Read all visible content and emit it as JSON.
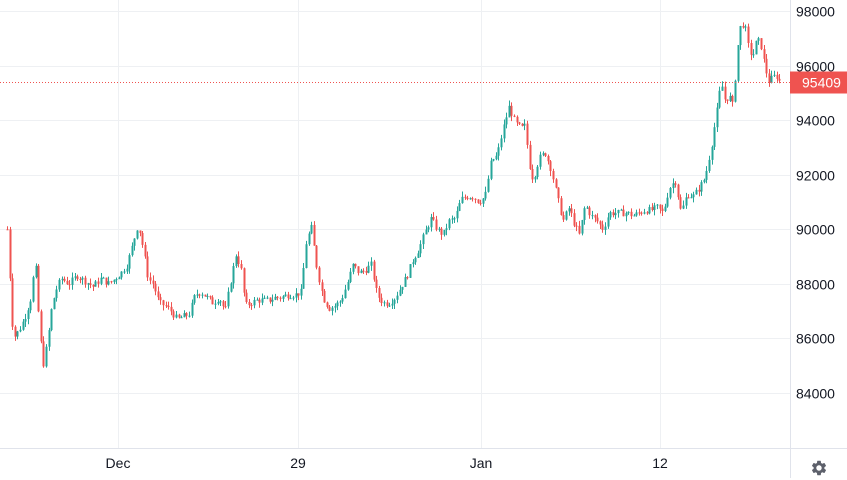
{
  "chart_data": {
    "type": "candlestick",
    "y_axis": {
      "ticks": [
        "98000",
        "96000",
        "94000",
        "92000",
        "90000",
        "88000",
        "86000",
        "84000"
      ],
      "range": [
        82000,
        98500
      ],
      "position": "right"
    },
    "x_axis": {
      "ticks": [
        "Dec",
        "29",
        "Jan",
        "12"
      ]
    },
    "last_price": 95409,
    "last_price_label": "95409",
    "colors": {
      "up": "#26a69a",
      "down": "#ef5350",
      "grid": "#eef0f3",
      "text": "#131722",
      "axis_border": "#e0e3eb",
      "price_line": "#ef5350"
    },
    "grid": true,
    "price_path": [
      [
        0,
        90000
      ],
      [
        6,
        86000
      ],
      [
        12,
        86300
      ],
      [
        18,
        86800
      ],
      [
        24,
        87500
      ],
      [
        28,
        88900
      ],
      [
        32,
        86500
      ],
      [
        36,
        85000
      ],
      [
        40,
        85800
      ],
      [
        44,
        87000
      ],
      [
        48,
        87700
      ],
      [
        54,
        88200
      ],
      [
        62,
        88000
      ],
      [
        70,
        88300
      ],
      [
        78,
        88100
      ],
      [
        86,
        87900
      ],
      [
        94,
        88200
      ],
      [
        102,
        88000
      ],
      [
        108,
        88200
      ],
      [
        114,
        88400
      ],
      [
        120,
        88700
      ],
      [
        126,
        89500
      ],
      [
        131,
        90200
      ],
      [
        136,
        89300
      ],
      [
        141,
        88200
      ],
      [
        146,
        88000
      ],
      [
        152,
        87300
      ],
      [
        158,
        87200
      ],
      [
        164,
        87000
      ],
      [
        170,
        86700
      ],
      [
        176,
        86800
      ],
      [
        182,
        86900
      ],
      [
        188,
        87600
      ],
      [
        194,
        87700
      ],
      [
        200,
        87500
      ],
      [
        206,
        87300
      ],
      [
        212,
        87500
      ],
      [
        218,
        87000
      ],
      [
        224,
        88200
      ],
      [
        229,
        89100
      ],
      [
        234,
        88500
      ],
      [
        238,
        87200
      ],
      [
        244,
        87300
      ],
      [
        250,
        87400
      ],
      [
        256,
        87400
      ],
      [
        262,
        87400
      ],
      [
        268,
        87500
      ],
      [
        274,
        87500
      ],
      [
        280,
        87600
      ],
      [
        288,
        87600
      ],
      [
        294,
        87700
      ],
      [
        299,
        89500
      ],
      [
        304,
        90100
      ],
      [
        310,
        88500
      ],
      [
        316,
        87500
      ],
      [
        322,
        87100
      ],
      [
        328,
        87200
      ],
      [
        334,
        87400
      ],
      [
        340,
        88000
      ],
      [
        346,
        88700
      ],
      [
        352,
        88400
      ],
      [
        358,
        88500
      ],
      [
        364,
        88700
      ],
      [
        370,
        87600
      ],
      [
        376,
        87300
      ],
      [
        382,
        87300
      ],
      [
        388,
        87500
      ],
      [
        394,
        87900
      ],
      [
        400,
        88300
      ],
      [
        406,
        88900
      ],
      [
        412,
        89300
      ],
      [
        418,
        89900
      ],
      [
        424,
        90400
      ],
      [
        430,
        90000
      ],
      [
        436,
        89800
      ],
      [
        442,
        90300
      ],
      [
        448,
        90400
      ],
      [
        454,
        91100
      ],
      [
        460,
        91200
      ],
      [
        466,
        91200
      ],
      [
        472,
        91000
      ],
      [
        478,
        91200
      ],
      [
        484,
        92500
      ],
      [
        490,
        92700
      ],
      [
        496,
        93700
      ],
      [
        502,
        94500
      ],
      [
        508,
        93900
      ],
      [
        514,
        93700
      ],
      [
        518,
        93800
      ],
      [
        522,
        92400
      ],
      [
        526,
        91800
      ],
      [
        532,
        92600
      ],
      [
        538,
        92800
      ],
      [
        544,
        92200
      ],
      [
        550,
        91200
      ],
      [
        556,
        90300
      ],
      [
        562,
        90800
      ],
      [
        566,
        90300
      ],
      [
        572,
        89800
      ],
      [
        578,
        90900
      ],
      [
        584,
        90500
      ],
      [
        590,
        90300
      ],
      [
        596,
        90000
      ],
      [
        602,
        90600
      ],
      [
        608,
        90600
      ],
      [
        614,
        90600
      ],
      [
        620,
        90600
      ],
      [
        626,
        90500
      ],
      [
        632,
        90600
      ],
      [
        638,
        90700
      ],
      [
        644,
        90700
      ],
      [
        650,
        90800
      ],
      [
        656,
        90600
      ],
      [
        662,
        91500
      ],
      [
        668,
        91800
      ],
      [
        674,
        90600
      ],
      [
        680,
        91300
      ],
      [
        686,
        91200
      ],
      [
        692,
        91500
      ],
      [
        698,
        91900
      ],
      [
        704,
        93000
      ],
      [
        710,
        94400
      ],
      [
        714,
        95400
      ],
      [
        718,
        94700
      ],
      [
        722,
        94900
      ],
      [
        726,
        94500
      ],
      [
        730,
        96600
      ],
      [
        734,
        97600
      ],
      [
        738,
        97400
      ],
      [
        742,
        96500
      ],
      [
        746,
        96400
      ],
      [
        750,
        97000
      ],
      [
        754,
        96700
      ],
      [
        758,
        95900
      ],
      [
        762,
        95400
      ],
      [
        766,
        95600
      ],
      [
        770,
        95600
      ],
      [
        774,
        95300
      ],
      [
        778,
        95409
      ]
    ]
  }
}
